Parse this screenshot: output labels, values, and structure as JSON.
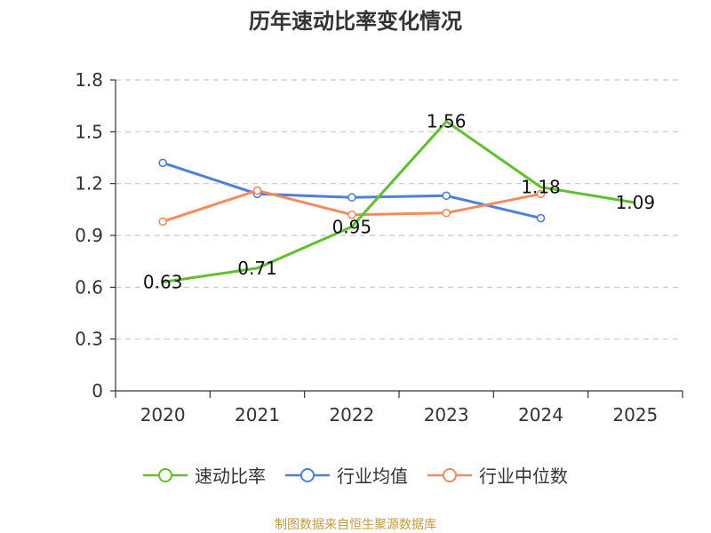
{
  "chart_data": {
    "type": "line",
    "title": "历年速动比率变化情况",
    "categories": [
      "2020",
      "2021",
      "2022",
      "2023",
      "2024",
      "2025"
    ],
    "ylim": [
      0,
      1.8
    ],
    "yticks": [
      "0",
      "0.3",
      "0.6",
      "0.9",
      "1.2",
      "1.5",
      "1.8"
    ],
    "grid": true,
    "legend_position": "bottom",
    "series": [
      {
        "name": "速动比率",
        "color": "#5cc12a",
        "values": [
          0.63,
          0.71,
          0.95,
          1.56,
          1.18,
          1.09
        ],
        "labels": [
          "0.63",
          "0.71",
          "0.95",
          "1.56",
          "1.18",
          "1.09"
        ],
        "markers": false
      },
      {
        "name": "行业均值",
        "color": "#4f7fdc",
        "values": [
          1.32,
          1.14,
          1.12,
          1.13,
          1.0,
          null
        ],
        "markers": true
      },
      {
        "name": "行业中位数",
        "color": "#f58b5a",
        "values": [
          0.98,
          1.16,
          1.02,
          1.03,
          1.14,
          null
        ],
        "markers": true
      }
    ]
  },
  "source_note": "制图数据来自恒生聚源数据库"
}
